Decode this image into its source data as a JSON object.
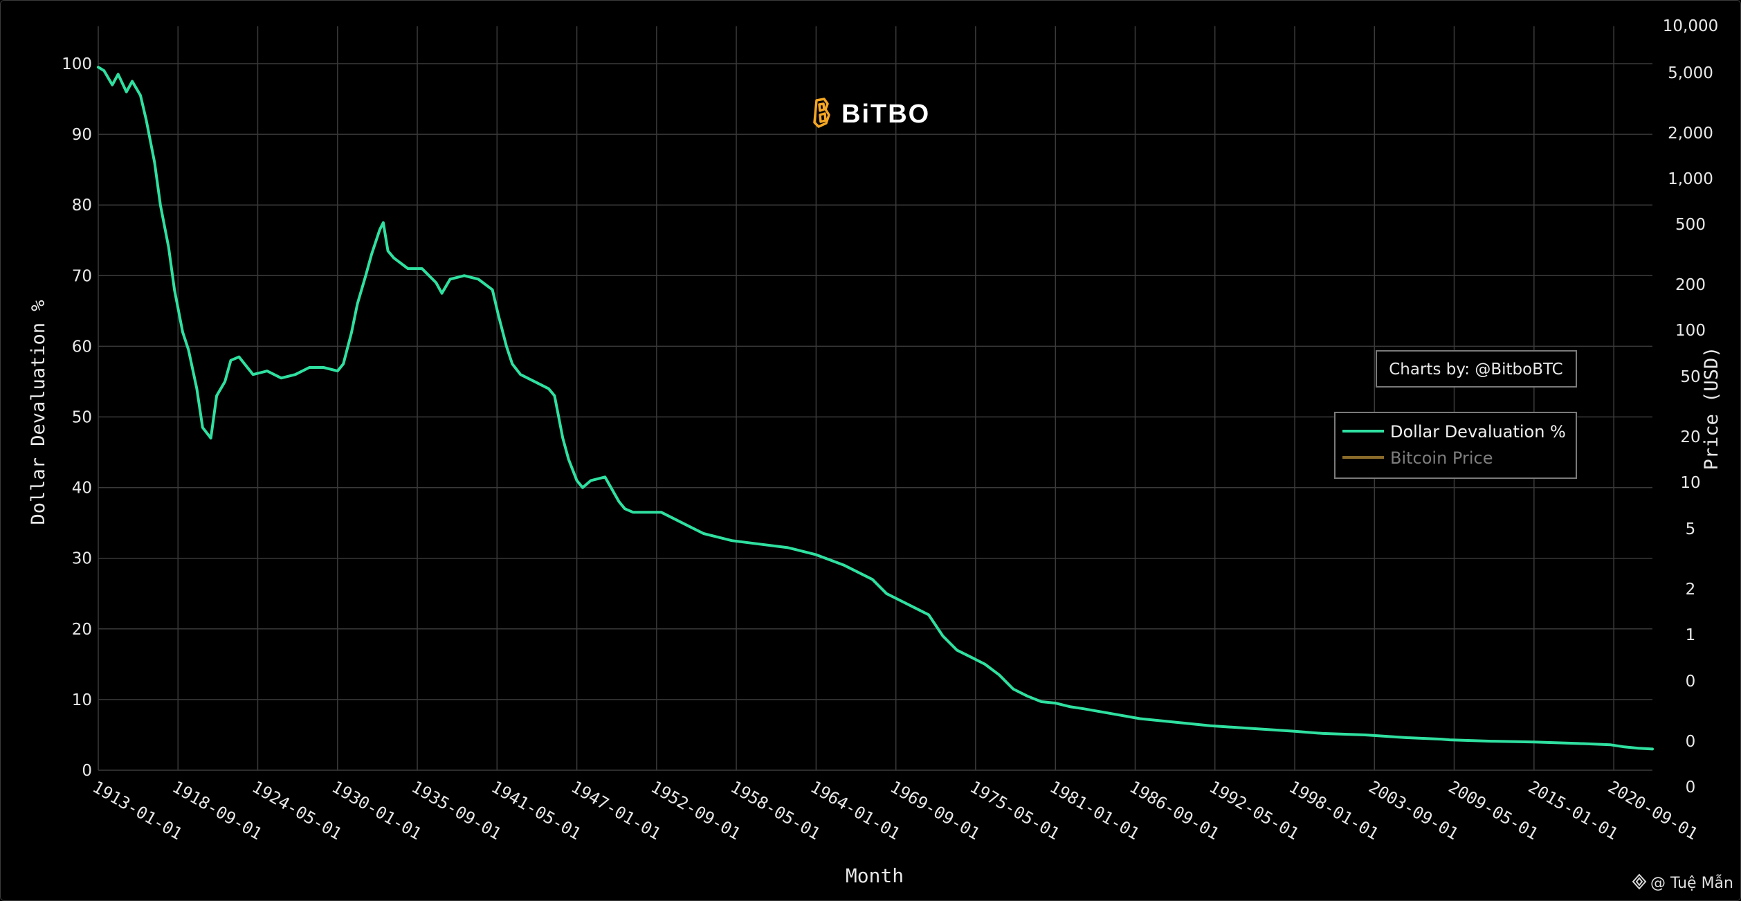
{
  "logo": {
    "text": "BiTBO"
  },
  "credit_box": {
    "text": "Charts by: @BitboBTC"
  },
  "watermark": {
    "text": "@ Tuệ Mẫn"
  },
  "colors": {
    "background": "#000000",
    "grid": "#3a3a3a",
    "devaluation": "#2fe0a0",
    "bitcoin": "#8a6b2a",
    "logo_accent": "#f5a623"
  },
  "chart_data": {
    "type": "line",
    "xlabel": "Month",
    "ylabel": "Dollar Devaluation %",
    "y2label": "Price (USD)",
    "ylim": [
      0,
      100
    ],
    "y_ticks": [
      0,
      10,
      20,
      30,
      40,
      50,
      60,
      70,
      80,
      90,
      100
    ],
    "y2_ticks": [
      "10,000",
      "5,000",
      "2,000",
      "1,000",
      "500",
      "200",
      "100",
      "50",
      "20",
      "10",
      "5",
      "2",
      "1",
      "0",
      "0",
      "0"
    ],
    "y2_scale": "log",
    "x_ticks": [
      "1913-01-01",
      "1918-09-01",
      "1924-05-01",
      "1930-01-01",
      "1935-09-01",
      "1941-05-01",
      "1947-01-01",
      "1952-09-01",
      "1958-05-01",
      "1964-01-01",
      "1969-09-01",
      "1975-05-01",
      "1981-01-01",
      "1986-09-01",
      "1992-05-01",
      "1998-01-01",
      "2003-09-01",
      "2009-05-01",
      "2015-01-01",
      "2020-09-01"
    ],
    "xlim": [
      "1913-01-01",
      "2023-06-01"
    ],
    "grid": true,
    "legend_position": "right",
    "series": [
      {
        "name": "Dollar Devaluation %",
        "color": "#2fe0a0",
        "x": [
          "1913-01-01",
          "1913-06-01",
          "1914-01-01",
          "1914-06-01",
          "1915-01-01",
          "1915-06-01",
          "1916-01-01",
          "1916-06-01",
          "1917-01-01",
          "1917-06-01",
          "1918-01-01",
          "1918-06-01",
          "1919-01-01",
          "1919-06-01",
          "1920-01-01",
          "1920-06-01",
          "1921-01-01",
          "1921-06-01",
          "1922-01-01",
          "1922-06-01",
          "1923-01-01",
          "1924-01-01",
          "1925-01-01",
          "1926-01-01",
          "1927-01-01",
          "1928-01-01",
          "1929-01-01",
          "1930-01-01",
          "1930-06-01",
          "1931-01-01",
          "1931-06-01",
          "1932-01-01",
          "1932-06-01",
          "1933-01-01",
          "1933-04-01",
          "1933-08-01",
          "1934-01-01",
          "1935-01-01",
          "1936-01-01",
          "1937-01-01",
          "1937-06-01",
          "1938-01-01",
          "1939-01-01",
          "1940-01-01",
          "1941-01-01",
          "1941-06-01",
          "1942-01-01",
          "1942-06-01",
          "1943-01-01",
          "1944-01-01",
          "1945-01-01",
          "1945-06-01",
          "1946-01-01",
          "1946-06-01",
          "1947-01-01",
          "1947-06-01",
          "1948-01-01",
          "1949-01-01",
          "1950-01-01",
          "1950-06-01",
          "1951-01-01",
          "1952-01-01",
          "1953-01-01",
          "1955-01-01",
          "1956-01-01",
          "1957-01-01",
          "1958-01-01",
          "1960-01-01",
          "1962-01-01",
          "1964-01-01",
          "1966-01-01",
          "1968-01-01",
          "1969-01-01",
          "1970-01-01",
          "1971-01-01",
          "1972-01-01",
          "1973-01-01",
          "1974-01-01",
          "1975-01-01",
          "1976-01-01",
          "1977-01-01",
          "1978-01-01",
          "1979-01-01",
          "1980-01-01",
          "1981-01-01",
          "1982-01-01",
          "1983-01-01",
          "1985-01-01",
          "1987-01-01",
          "1990-01-01",
          "1992-01-01",
          "1995-01-01",
          "1998-01-01",
          "2000-01-01",
          "2003-01-01",
          "2006-01-01",
          "2008-06-01",
          "2009-01-01",
          "2012-01-01",
          "2015-01-01",
          "2018-01-01",
          "2020-06-01",
          "2021-06-01",
          "2022-06-01",
          "2023-06-01"
        ],
        "y": [
          99.5,
          99.0,
          97.0,
          98.5,
          96.0,
          97.5,
          95.5,
          92.0,
          86.0,
          80.0,
          74.0,
          68.0,
          62.0,
          59.5,
          54.0,
          48.5,
          47.0,
          53.0,
          55.0,
          58.0,
          58.5,
          56.0,
          56.5,
          55.5,
          56.0,
          57.0,
          57.0,
          56.5,
          57.5,
          62.0,
          66.0,
          70.0,
          73.0,
          76.5,
          77.5,
          73.5,
          72.5,
          71.0,
          71.0,
          69.0,
          67.5,
          69.5,
          70.0,
          69.5,
          68.0,
          64.5,
          60.0,
          57.5,
          56.0,
          55.0,
          54.0,
          53.0,
          47.0,
          44.0,
          41.0,
          40.0,
          41.0,
          41.5,
          38.0,
          37.0,
          36.5,
          36.5,
          36.5,
          34.5,
          33.5,
          33.0,
          32.5,
          32.0,
          31.5,
          30.5,
          29.0,
          27.0,
          25.0,
          24.0,
          23.0,
          22.0,
          19.0,
          17.0,
          16.0,
          15.0,
          13.5,
          11.5,
          10.5,
          9.7,
          9.5,
          9.0,
          8.7,
          8.0,
          7.3,
          6.7,
          6.3,
          5.9,
          5.5,
          5.2,
          5.0,
          4.6,
          4.4,
          4.3,
          4.1,
          4.0,
          3.8,
          3.6,
          3.3,
          3.1,
          3.0
        ]
      },
      {
        "name": "Bitcoin Price",
        "color": "#8a6b2a",
        "x": [],
        "y": []
      }
    ]
  }
}
